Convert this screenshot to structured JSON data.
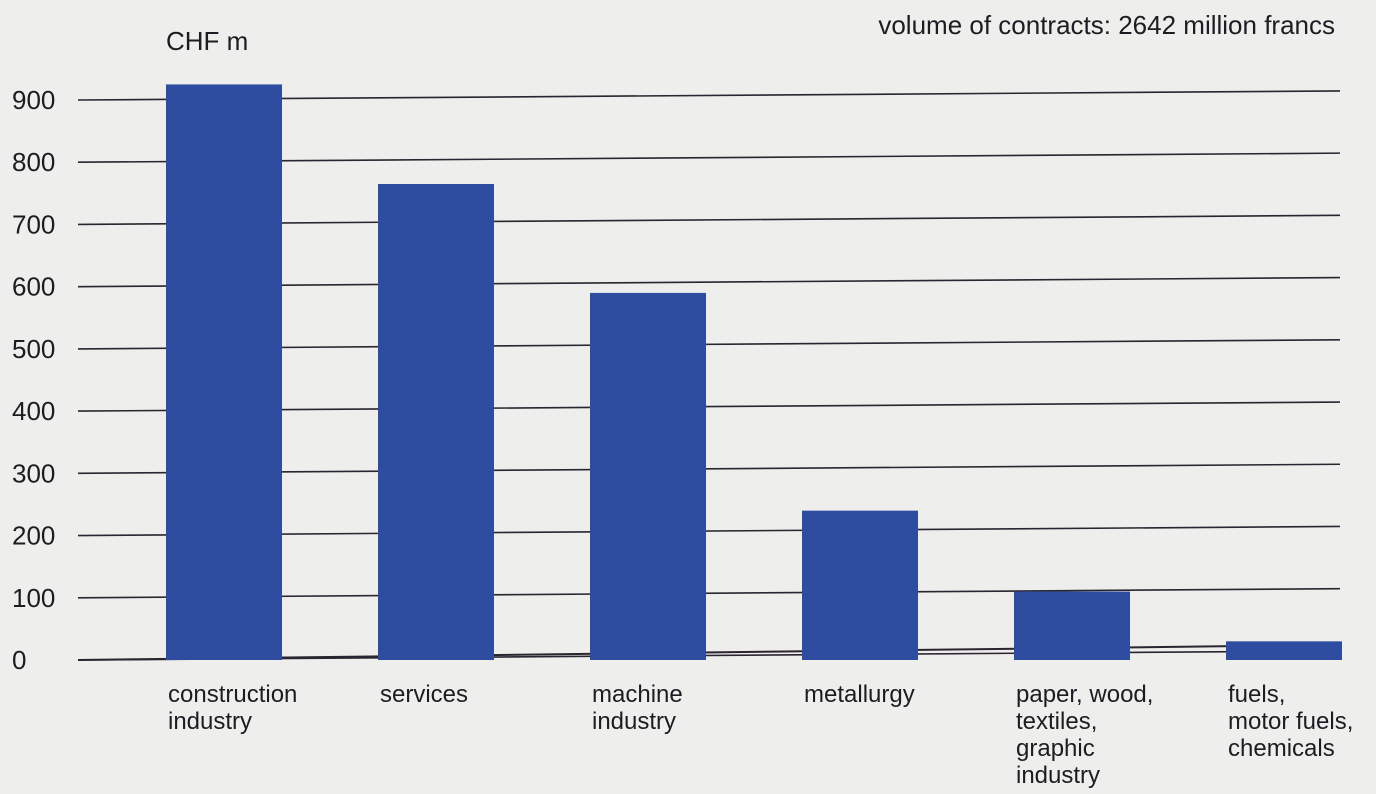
{
  "chart_data": {
    "type": "bar",
    "title": "volume of contracts: 2642 million francs",
    "ylabel": "CHF m",
    "xlabel": "",
    "ylim": [
      0,
      900
    ],
    "yticks": [
      0,
      100,
      200,
      300,
      400,
      500,
      600,
      700,
      800,
      900
    ],
    "grid": true,
    "categories": [
      [
        "construction",
        "industry"
      ],
      [
        "services"
      ],
      [
        "machine",
        "industry"
      ],
      [
        "metallurgy"
      ],
      [
        "paper, wood,",
        "textiles,",
        "graphic",
        "industry"
      ],
      [
        "fuels,",
        "motor fuels,",
        "chemicals"
      ]
    ],
    "values": [
      925,
      765,
      590,
      240,
      110,
      30
    ],
    "colors": {
      "bar": "#2f4da0",
      "grid": "#2a2530",
      "text": "#1c1c22",
      "background": "#eeeeec"
    }
  }
}
